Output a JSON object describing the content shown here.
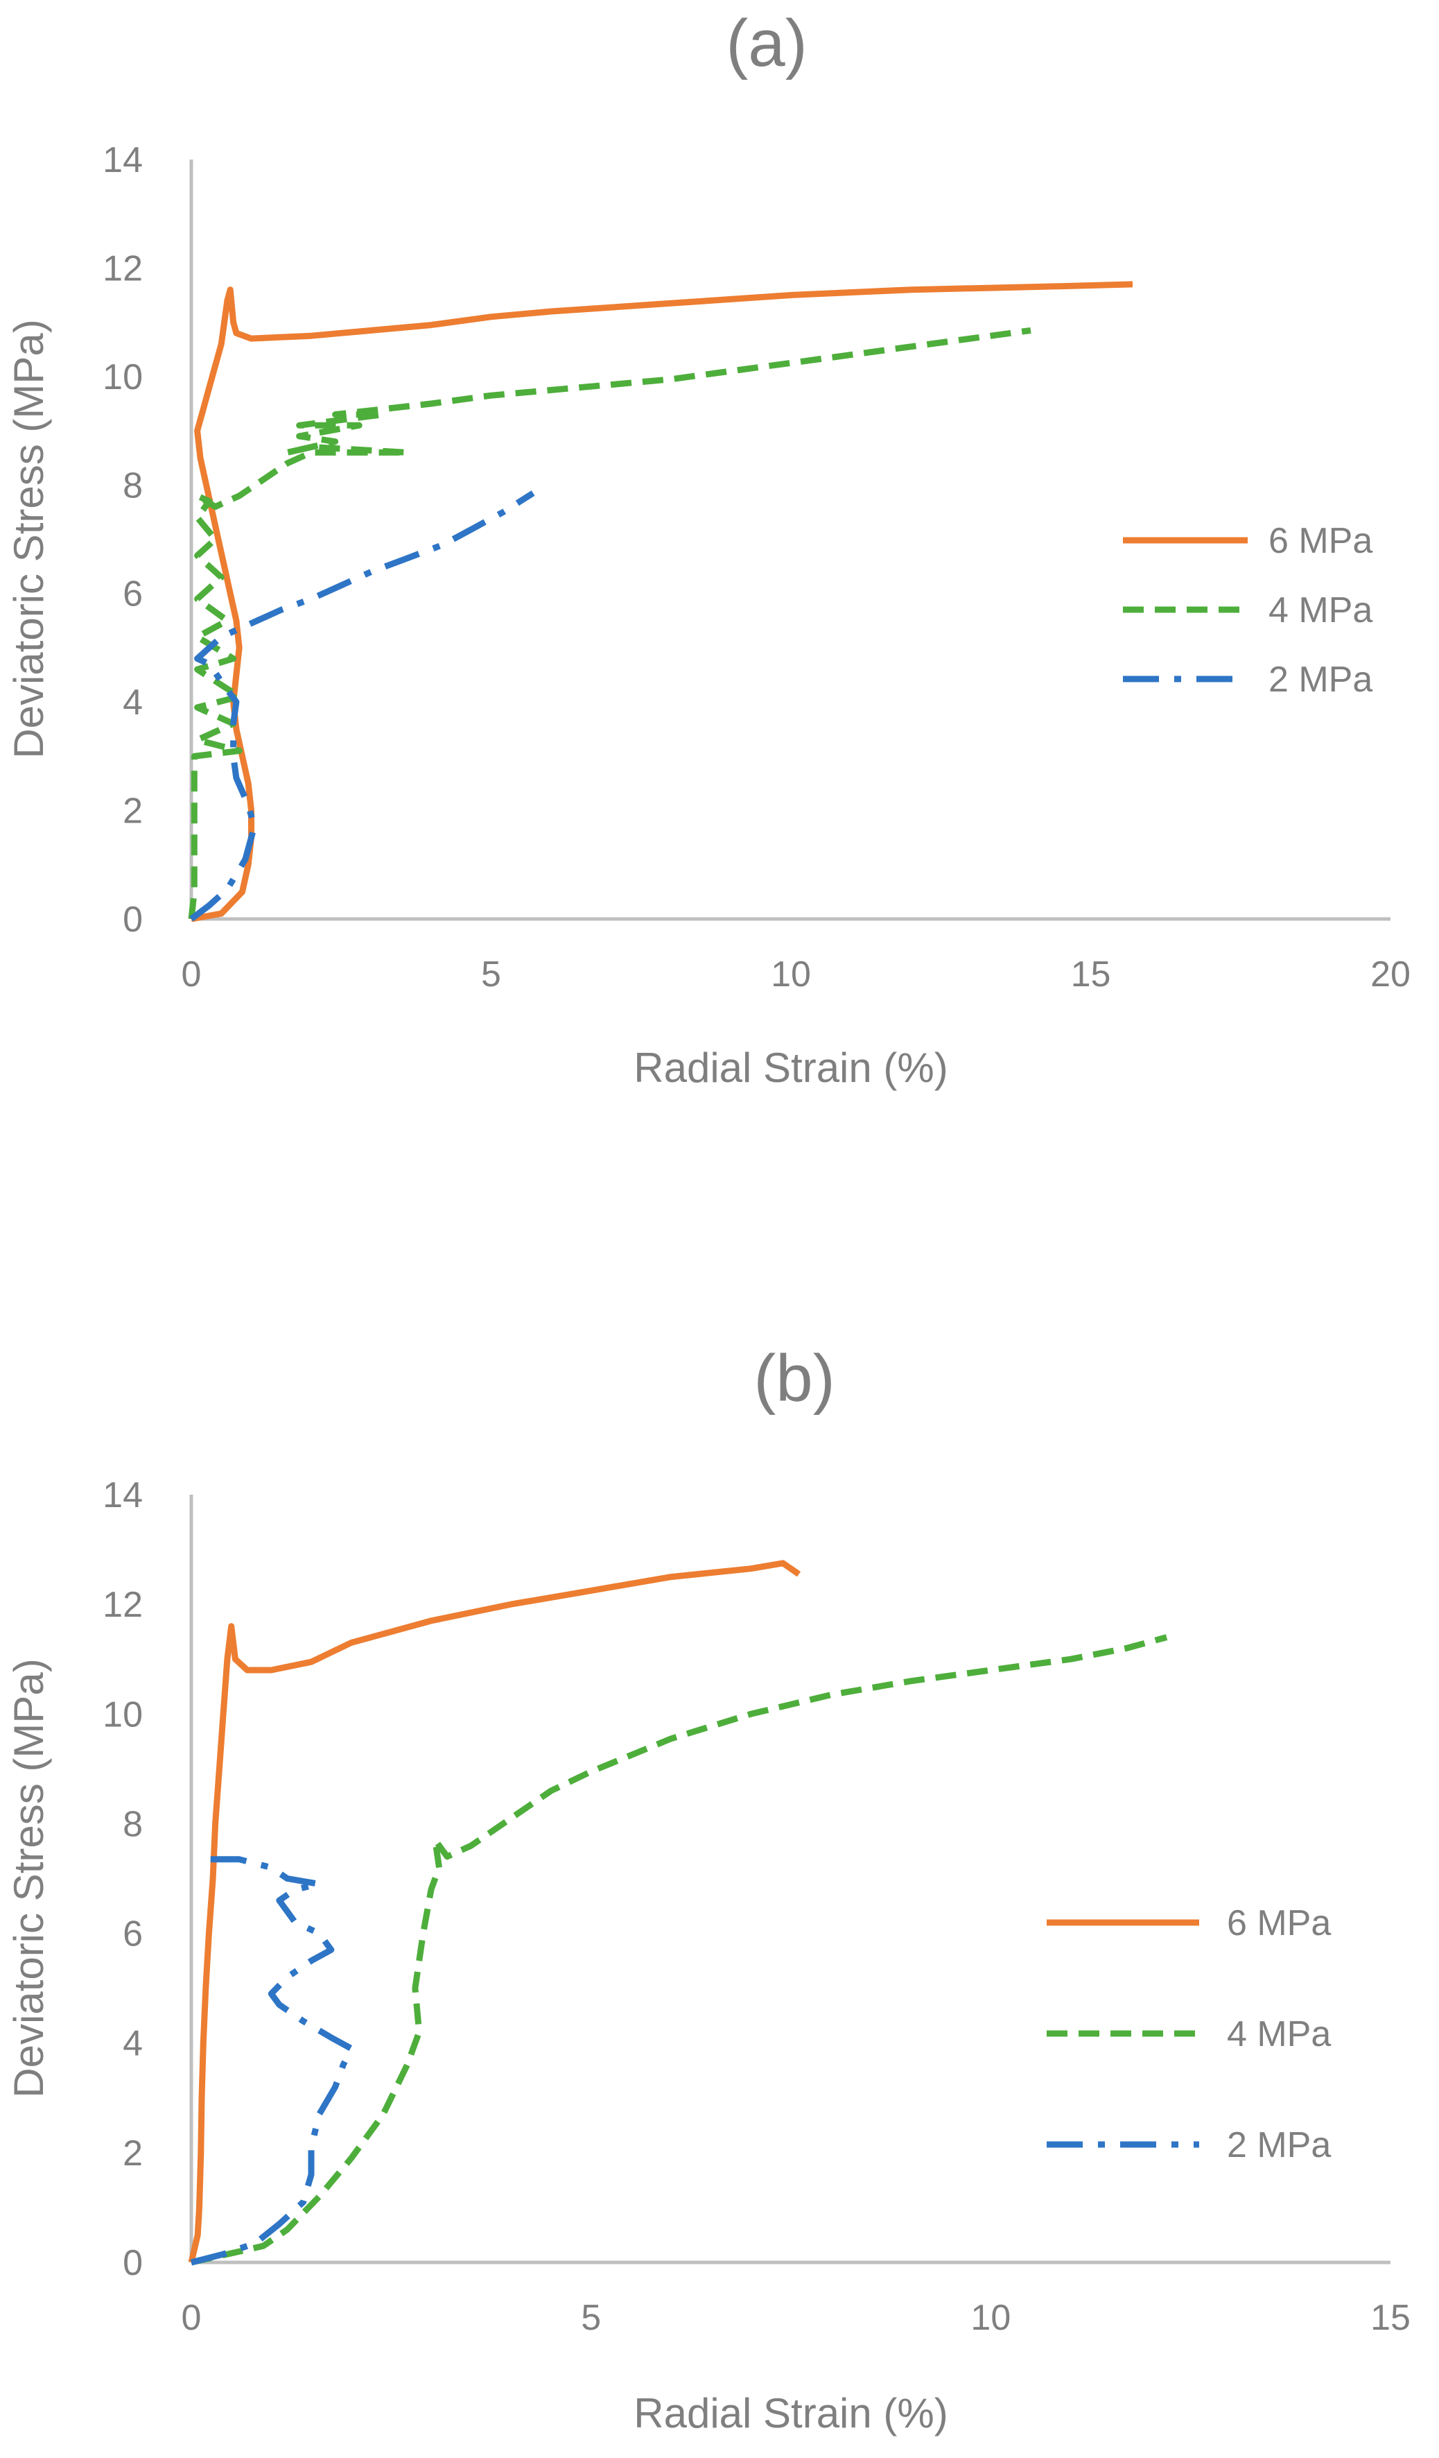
{
  "figure": {
    "colors": {
      "s6": "#ED7D31",
      "s4": "#4EAE3B",
      "s2": "#2E75C6",
      "axis": "#BFBFBF",
      "text": "#7F7F7F"
    }
  },
  "chart_data": [
    {
      "type": "line",
      "title": "(a)",
      "xlabel": "Radial Strain (%)",
      "ylabel": "Deviatoric Stress (MPa)",
      "xlim": [
        0,
        20
      ],
      "ylim": [
        0,
        14
      ],
      "xticks": [
        "0",
        "5",
        "10",
        "15",
        "20"
      ],
      "yticks": [
        "0",
        "2",
        "4",
        "6",
        "8",
        "10",
        "12",
        "14"
      ],
      "legend_position": "right",
      "series": [
        {
          "name": "6 MPa",
          "style": "solid",
          "points": [
            [
              0,
              0
            ],
            [
              0.5,
              0.1
            ],
            [
              0.85,
              0.5
            ],
            [
              0.95,
              1.0
            ],
            [
              1.0,
              1.5
            ],
            [
              1.0,
              2.0
            ],
            [
              0.95,
              2.5
            ],
            [
              0.85,
              3.0
            ],
            [
              0.75,
              3.5
            ],
            [
              0.7,
              4.0
            ],
            [
              0.75,
              4.5
            ],
            [
              0.8,
              5.0
            ],
            [
              0.75,
              5.5
            ],
            [
              0.65,
              6.0
            ],
            [
              0.55,
              6.5
            ],
            [
              0.45,
              7.0
            ],
            [
              0.35,
              7.5
            ],
            [
              0.25,
              8.0
            ],
            [
              0.15,
              8.5
            ],
            [
              0.1,
              9.0
            ],
            [
              0.2,
              9.4
            ],
            [
              0.3,
              9.8
            ],
            [
              0.4,
              10.2
            ],
            [
              0.5,
              10.6
            ],
            [
              0.55,
              11.0
            ],
            [
              0.6,
              11.4
            ],
            [
              0.65,
              11.6
            ],
            [
              0.7,
              11.0
            ],
            [
              0.75,
              10.8
            ],
            [
              1.0,
              10.7
            ],
            [
              2.0,
              10.75
            ],
            [
              3.0,
              10.85
            ],
            [
              4.0,
              10.95
            ],
            [
              5.0,
              11.1
            ],
            [
              6.0,
              11.2
            ],
            [
              8.0,
              11.35
            ],
            [
              10.0,
              11.5
            ],
            [
              12.0,
              11.6
            ],
            [
              14.0,
              11.65
            ],
            [
              15.7,
              11.7
            ]
          ]
        },
        {
          "name": "4 MPa",
          "style": "dashed",
          "points": [
            [
              0,
              0
            ],
            [
              0.05,
              0.5
            ],
            [
              0.05,
              1.0
            ],
            [
              0.05,
              2.0
            ],
            [
              0.05,
              3.0
            ],
            [
              0.8,
              3.1
            ],
            [
              0.1,
              3.3
            ],
            [
              0.7,
              3.6
            ],
            [
              0.1,
              3.9
            ],
            [
              0.8,
              4.1
            ],
            [
              0.1,
              4.6
            ],
            [
              0.7,
              4.8
            ],
            [
              0.1,
              5.2
            ],
            [
              0.6,
              5.5
            ],
            [
              0.1,
              5.9
            ],
            [
              0.5,
              6.3
            ],
            [
              0.1,
              6.7
            ],
            [
              0.4,
              7.0
            ],
            [
              0.1,
              7.4
            ],
            [
              0.3,
              7.7
            ],
            [
              0.1,
              7.8
            ],
            [
              0.4,
              7.6
            ],
            [
              0.8,
              7.8
            ],
            [
              1.2,
              8.1
            ],
            [
              1.6,
              8.4
            ],
            [
              2.0,
              8.6
            ],
            [
              3.6,
              8.6
            ],
            [
              2.0,
              8.7
            ],
            [
              1.6,
              8.6
            ],
            [
              2.4,
              8.8
            ],
            [
              1.8,
              8.9
            ],
            [
              2.8,
              9.1
            ],
            [
              1.8,
              9.1
            ],
            [
              3.2,
              9.3
            ],
            [
              2.4,
              9.3
            ],
            [
              4.0,
              9.5
            ],
            [
              5.0,
              9.65
            ],
            [
              6.0,
              9.75
            ],
            [
              7.0,
              9.85
            ],
            [
              8.0,
              9.95
            ],
            [
              9.0,
              10.1
            ],
            [
              10.0,
              10.25
            ],
            [
              11.0,
              10.4
            ],
            [
              12.0,
              10.55
            ],
            [
              13.0,
              10.7
            ],
            [
              14.0,
              10.85
            ]
          ]
        },
        {
          "name": "2 MPa",
          "style": "dashdot",
          "points": [
            [
              0,
              0
            ],
            [
              0.3,
              0.25
            ],
            [
              0.6,
              0.55
            ],
            [
              0.9,
              1.1
            ],
            [
              1.05,
              1.7
            ],
            [
              0.95,
              2.1
            ],
            [
              0.75,
              2.6
            ],
            [
              0.7,
              3.0
            ],
            [
              0.7,
              3.6
            ],
            [
              0.75,
              4.0
            ],
            [
              0.55,
              4.3
            ],
            [
              0.3,
              4.7
            ],
            [
              0.1,
              4.8
            ],
            [
              0.3,
              5.0
            ],
            [
              0.5,
              5.2
            ],
            [
              0.9,
              5.4
            ],
            [
              1.5,
              5.7
            ],
            [
              2.0,
              5.9
            ],
            [
              2.5,
              6.15
            ],
            [
              3.0,
              6.4
            ],
            [
              3.6,
              6.65
            ],
            [
              4.2,
              6.9
            ],
            [
              4.7,
              7.2
            ],
            [
              5.2,
              7.5
            ],
            [
              5.7,
              7.85
            ]
          ]
        }
      ]
    },
    {
      "type": "line",
      "title": "(b)",
      "xlabel": "Radial Strain (%)",
      "ylabel": "Deviatoric Stress (MPa)",
      "xlim": [
        0,
        15
      ],
      "ylim": [
        0,
        14
      ],
      "xticks": [
        "0",
        "5",
        "10",
        "15"
      ],
      "yticks": [
        "0",
        "2",
        "4",
        "6",
        "8",
        "10",
        "12",
        "14"
      ],
      "legend_position": "right",
      "series": [
        {
          "name": "6 MPa",
          "style": "solid",
          "points": [
            [
              0,
              0
            ],
            [
              0.08,
              0.5
            ],
            [
              0.1,
              1.0
            ],
            [
              0.12,
              2.0
            ],
            [
              0.13,
              3.0
            ],
            [
              0.15,
              4.0
            ],
            [
              0.18,
              5.0
            ],
            [
              0.22,
              6.0
            ],
            [
              0.27,
              7.0
            ],
            [
              0.3,
              8.0
            ],
            [
              0.35,
              9.0
            ],
            [
              0.4,
              10.0
            ],
            [
              0.45,
              11.0
            ],
            [
              0.5,
              11.6
            ],
            [
              0.55,
              11.0
            ],
            [
              0.7,
              10.8
            ],
            [
              1.0,
              10.8
            ],
            [
              1.5,
              10.95
            ],
            [
              2.0,
              11.3
            ],
            [
              2.5,
              11.5
            ],
            [
              3.0,
              11.7
            ],
            [
              4.0,
              12.0
            ],
            [
              5.0,
              12.25
            ],
            [
              6.0,
              12.5
            ],
            [
              7.0,
              12.65
            ],
            [
              7.4,
              12.75
            ],
            [
              7.6,
              12.55
            ]
          ]
        },
        {
          "name": "4 MPa",
          "style": "dashed",
          "points": [
            [
              0,
              0
            ],
            [
              0.3,
              0.1
            ],
            [
              0.6,
              0.2
            ],
            [
              0.9,
              0.3
            ],
            [
              1.2,
              0.6
            ],
            [
              1.6,
              1.2
            ],
            [
              2.0,
              1.9
            ],
            [
              2.4,
              2.7
            ],
            [
              2.7,
              3.6
            ],
            [
              2.85,
              4.2
            ],
            [
              2.8,
              5.0
            ],
            [
              2.9,
              6.0
            ],
            [
              3.0,
              6.8
            ],
            [
              3.1,
              7.2
            ],
            [
              3.05,
              7.7
            ],
            [
              3.2,
              7.4
            ],
            [
              3.5,
              7.6
            ],
            [
              4.0,
              8.1
            ],
            [
              4.5,
              8.6
            ],
            [
              5.0,
              8.95
            ],
            [
              6.0,
              9.55
            ],
            [
              7.0,
              10.0
            ],
            [
              8.0,
              10.35
            ],
            [
              9.0,
              10.6
            ],
            [
              10.0,
              10.8
            ],
            [
              11.0,
              11.0
            ],
            [
              11.7,
              11.2
            ],
            [
              12.2,
              11.4
            ]
          ]
        },
        {
          "name": "2 MPa",
          "style": "dashdot",
          "points": [
            [
              0,
              0
            ],
            [
              0.4,
              0.15
            ],
            [
              0.8,
              0.35
            ],
            [
              1.1,
              0.7
            ],
            [
              1.4,
              1.1
            ],
            [
              1.5,
              1.6
            ],
            [
              1.5,
              2.1
            ],
            [
              1.6,
              2.7
            ],
            [
              1.8,
              3.2
            ],
            [
              1.9,
              3.6
            ],
            [
              2.0,
              3.9
            ],
            [
              1.75,
              4.1
            ],
            [
              1.4,
              4.4
            ],
            [
              1.1,
              4.7
            ],
            [
              1.0,
              4.9
            ],
            [
              1.2,
              5.2
            ],
            [
              1.5,
              5.5
            ],
            [
              1.75,
              5.7
            ],
            [
              1.6,
              6.0
            ],
            [
              1.3,
              6.2
            ],
            [
              1.1,
              6.6
            ],
            [
              1.3,
              6.8
            ],
            [
              1.6,
              6.9
            ],
            [
              1.2,
              7.0
            ],
            [
              1.0,
              7.2
            ],
            [
              0.6,
              7.35
            ],
            [
              0.2,
              7.35
            ]
          ]
        }
      ]
    }
  ]
}
